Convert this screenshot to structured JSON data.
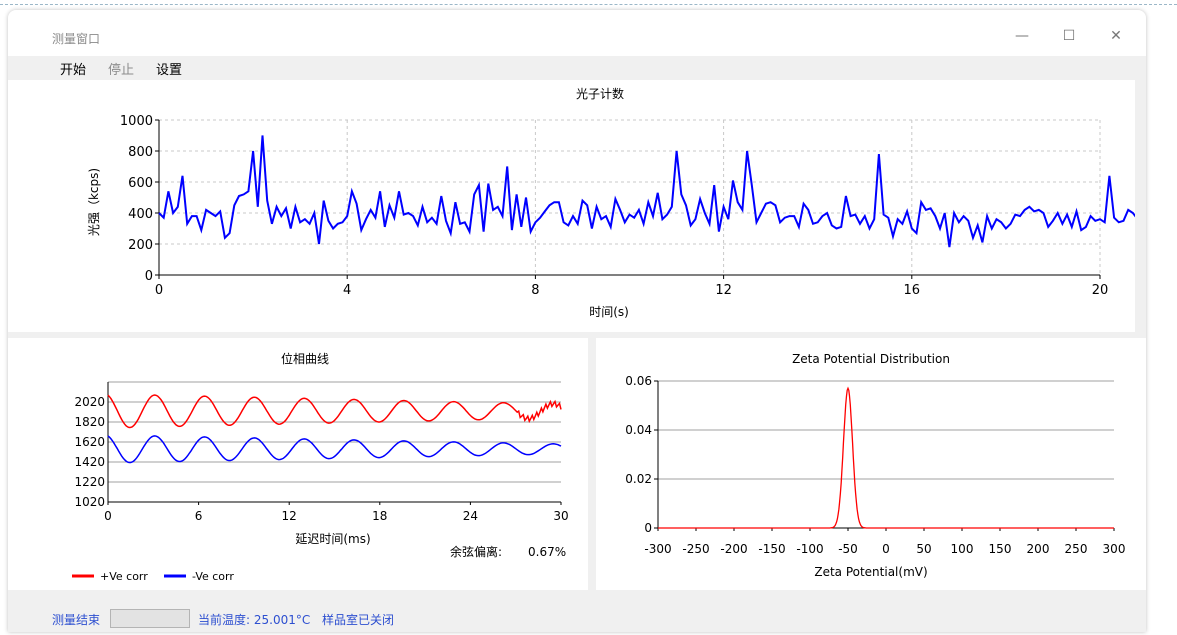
{
  "window": {
    "title": "测量窗口",
    "minimize_glyph": "—",
    "maximize_glyph": "☐",
    "close_glyph": "✕"
  },
  "menu": {
    "start": "开始",
    "stop": "停止",
    "settings": "设置"
  },
  "photon_chart": {
    "title": "光子计数",
    "xlabel": "时间(s)",
    "ylabel": "光强（kcps)",
    "x_ticks": [
      "0",
      "4",
      "8",
      "12",
      "16",
      "20"
    ],
    "y_ticks": [
      "0",
      "200",
      "400",
      "600",
      "800",
      "1000"
    ]
  },
  "phase_chart": {
    "title": "位相曲线",
    "xlabel": "延迟时间(ms)",
    "x_ticks": [
      "0",
      "6",
      "12",
      "18",
      "24",
      "30"
    ],
    "y_ticks": [
      "1020",
      "1220",
      "1420",
      "1620",
      "1820",
      "2020"
    ],
    "legend_pos": "+Ve corr",
    "legend_neg": "-Ve corr",
    "cosine_label": "余弦偏离:",
    "cosine_value": "0.67%"
  },
  "zeta_chart": {
    "title": "Zeta Potential Distribution",
    "xlabel": "Zeta Potential(mV)",
    "x_ticks": [
      "-300",
      "-250",
      "-200",
      "-150",
      "-100",
      "-50",
      "0",
      "50",
      "100",
      "150",
      "200",
      "250",
      "300"
    ],
    "y_ticks": [
      "0",
      "0.02",
      "0.04",
      "0.06"
    ]
  },
  "status": {
    "state": "测量结束",
    "temperature": "当前温度: 25.001°C",
    "chamber": "样品室已关闭"
  },
  "chart_data": [
    {
      "type": "line",
      "title": "光子计数",
      "xlabel": "时间(s)",
      "ylabel": "光强（kcps)",
      "xlim": [
        0,
        20
      ],
      "ylim": [
        0,
        1000
      ],
      "grid": true,
      "color": "#0000ff",
      "x_step": 0.1,
      "values": [
        400,
        370,
        540,
        400,
        440,
        640,
        330,
        380,
        380,
        290,
        420,
        400,
        380,
        410,
        240,
        270,
        450,
        510,
        520,
        540,
        800,
        440,
        900,
        480,
        330,
        440,
        380,
        430,
        300,
        440,
        340,
        360,
        330,
        400,
        200,
        480,
        350,
        300,
        330,
        340,
        380,
        540,
        460,
        290,
        360,
        420,
        370,
        540,
        310,
        450,
        370,
        540,
        390,
        400,
        380,
        320,
        440,
        340,
        370,
        330,
        510,
        350,
        270,
        470,
        330,
        340,
        280,
        520,
        580,
        280,
        590,
        420,
        440,
        380,
        700,
        290,
        520,
        310,
        500,
        280,
        340,
        370,
        410,
        450,
        470,
        470,
        340,
        320,
        380,
        330,
        480,
        450,
        300,
        440,
        360,
        380,
        310,
        490,
        420,
        340,
        390,
        370,
        420,
        330,
        470,
        380,
        530,
        360,
        390,
        440,
        800,
        520,
        450,
        320,
        360,
        490,
        400,
        330,
        580,
        280,
        440,
        360,
        610,
        470,
        420,
        800,
        580,
        340,
        400,
        460,
        470,
        450,
        340,
        370,
        380,
        380,
        310,
        460,
        420,
        330,
        340,
        380,
        400,
        320,
        300,
        310,
        510,
        380,
        390,
        330,
        380,
        300,
        360,
        780,
        390,
        370,
        250,
        360,
        330,
        410,
        300,
        270,
        470,
        420,
        430,
        380,
        300,
        400,
        180,
        400,
        340,
        380,
        350,
        240,
        320,
        210,
        380,
        300,
        360,
        340,
        300,
        330,
        390,
        380,
        420,
        440,
        410,
        420,
        400,
        310,
        350,
        400,
        330,
        390,
        310,
        410,
        290,
        310,
        380,
        350,
        360,
        340,
        640,
        370,
        340,
        350,
        420,
        400,
        360,
        510,
        420,
        440
      ]
    },
    {
      "type": "line",
      "title": "位相曲线",
      "xlabel": "延迟时间(ms)",
      "xlim": [
        0,
        30
      ],
      "ylim": [
        1020,
        2220
      ],
      "grid": true,
      "series": [
        {
          "name": "+Ve corr",
          "color": "#ff0000",
          "center": 1930,
          "amplitude": 170,
          "period_ms": 3.3,
          "amplitude_end": 70
        },
        {
          "name": "-Ve corr",
          "color": "#0000ff",
          "center": 1550,
          "amplitude": 140,
          "period_ms": 3.3,
          "amplitude_end": 50
        }
      ],
      "cosine_deviation": "0.67%"
    },
    {
      "type": "line",
      "title": "Zeta Potential Distribution",
      "xlabel": "Zeta Potential(mV)",
      "xlim": [
        -300,
        300
      ],
      "ylim": [
        0,
        0.06
      ],
      "grid": true,
      "color": "#ff0000",
      "series": [
        {
          "peak_x": -50,
          "peak_y": 0.057,
          "sigma_mV": 6
        }
      ]
    }
  ]
}
